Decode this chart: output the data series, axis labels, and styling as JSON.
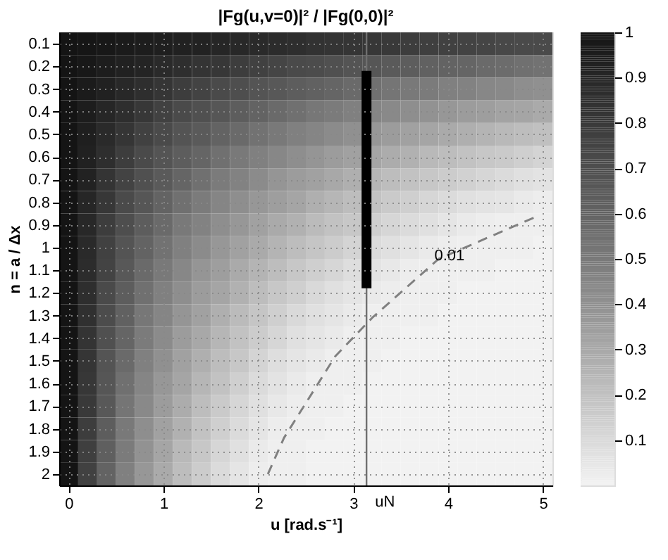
{
  "chart_data": {
    "type": "heatmap",
    "title": "|Fg(u,v=0)|² / |Fg(0,0)|²",
    "xlabel": "u [rad.s⁻¹]",
    "ylabel": "n = a / Δx",
    "x": [
      0,
      0.2,
      0.4,
      0.6,
      0.8,
      1,
      1.2,
      1.4,
      1.6,
      1.8,
      2,
      2.2,
      2.4,
      2.6,
      2.8,
      3,
      3.2,
      3.4,
      3.6,
      3.8,
      4,
      4.2,
      4.4,
      4.6,
      4.8,
      5
    ],
    "y": [
      0.1,
      0.2,
      0.3,
      0.4,
      0.5,
      0.6,
      0.7,
      0.8,
      0.9,
      1,
      1.1,
      1.2,
      1.3,
      1.4,
      1.5,
      1.6,
      1.7,
      1.8,
      1.9,
      2
    ],
    "cells": [
      [
        1,
        0.99,
        0.98,
        0.96,
        0.95,
        0.94,
        0.93,
        0.92,
        0.9,
        0.89,
        0.88,
        0.87,
        0.86,
        0.84,
        0.83,
        0.82,
        0.81,
        0.8,
        0.78,
        0.77,
        0.76,
        0.75,
        0.74,
        0.73,
        0.72,
        0.72
      ],
      [
        1,
        0.98,
        0.95,
        0.93,
        0.91,
        0.88,
        0.86,
        0.83,
        0.81,
        0.78,
        0.76,
        0.74,
        0.72,
        0.71,
        0.69,
        0.67,
        0.66,
        0.64,
        0.63,
        0.61,
        0.6,
        0.59,
        0.57,
        0.56,
        0.54,
        0.53
      ],
      [
        1,
        0.96,
        0.93,
        0.89,
        0.86,
        0.82,
        0.78,
        0.75,
        0.72,
        0.7,
        0.67,
        0.65,
        0.63,
        0.61,
        0.59,
        0.57,
        0.54,
        0.52,
        0.5,
        0.49,
        0.47,
        0.46,
        0.44,
        0.43,
        0.41,
        0.4
      ],
      [
        1,
        0.95,
        0.9,
        0.86,
        0.81,
        0.76,
        0.72,
        0.69,
        0.66,
        0.63,
        0.6,
        0.57,
        0.54,
        0.51,
        0.49,
        0.47,
        0.45,
        0.43,
        0.41,
        0.39,
        0.37,
        0.35,
        0.34,
        0.32,
        0.31,
        0.29
      ],
      [
        1,
        0.94,
        0.88,
        0.82,
        0.76,
        0.72,
        0.67,
        0.64,
        0.6,
        0.57,
        0.53,
        0.5,
        0.47,
        0.45,
        0.42,
        0.4,
        0.37,
        0.35,
        0.33,
        0.31,
        0.29,
        0.27,
        0.25,
        0.23,
        0.21,
        0.2
      ],
      [
        1,
        0.93,
        0.86,
        0.78,
        0.72,
        0.67,
        0.63,
        0.59,
        0.54,
        0.5,
        0.47,
        0.44,
        0.41,
        0.38,
        0.35,
        0.33,
        0.31,
        0.28,
        0.26,
        0.23,
        0.21,
        0.19,
        0.17,
        0.16,
        0.14,
        0.12
      ],
      [
        1,
        0.92,
        0.83,
        0.75,
        0.69,
        0.64,
        0.59,
        0.54,
        0.49,
        0.46,
        0.42,
        0.38,
        0.35,
        0.33,
        0.3,
        0.27,
        0.24,
        0.21,
        0.19,
        0.17,
        0.15,
        0.13,
        0.11,
        0.09,
        0.07,
        0.06
      ],
      [
        1,
        0.9,
        0.81,
        0.72,
        0.66,
        0.6,
        0.54,
        0.49,
        0.45,
        0.41,
        0.37,
        0.34,
        0.31,
        0.27,
        0.24,
        0.21,
        0.19,
        0.16,
        0.14,
        0.11,
        0.09,
        0.07,
        0.06,
        0.05,
        0.03,
        0.02
      ],
      [
        1,
        0.89,
        0.78,
        0.7,
        0.63,
        0.57,
        0.5,
        0.46,
        0.41,
        0.37,
        0.33,
        0.29,
        0.26,
        0.22,
        0.19,
        0.17,
        0.14,
        0.11,
        0.09,
        0.07,
        0.05,
        0.03,
        0.02,
        0.01,
        0.01,
        0.01
      ],
      [
        1,
        0.88,
        0.76,
        0.67,
        0.6,
        0.53,
        0.47,
        0.42,
        0.37,
        0.33,
        0.29,
        0.25,
        0.21,
        0.18,
        0.15,
        0.12,
        0.09,
        0.07,
        0.05,
        0.03,
        0.02,
        0.01,
        0.01,
        0.01,
        0.01,
        0
      ],
      [
        1,
        0.87,
        0.75,
        0.65,
        0.57,
        0.5,
        0.44,
        0.38,
        0.34,
        0.29,
        0.25,
        0.21,
        0.17,
        0.14,
        0.11,
        0.08,
        0.06,
        0.04,
        0.02,
        0.01,
        0.01,
        0.01,
        0.01,
        0,
        0,
        0
      ],
      [
        1,
        0.86,
        0.72,
        0.63,
        0.54,
        0.47,
        0.41,
        0.35,
        0.31,
        0.26,
        0.21,
        0.17,
        0.14,
        0.1,
        0.07,
        0.05,
        0.03,
        0.02,
        0.01,
        0.01,
        0.01,
        0,
        0,
        0,
        0,
        0
      ],
      [
        1,
        0.85,
        0.71,
        0.61,
        0.51,
        0.45,
        0.38,
        0.33,
        0.27,
        0.22,
        0.18,
        0.14,
        0.1,
        0.07,
        0.05,
        0.03,
        0.01,
        0.01,
        0.01,
        0.01,
        0,
        0,
        0,
        0,
        0,
        0
      ],
      [
        1,
        0.83,
        0.69,
        0.59,
        0.49,
        0.42,
        0.35,
        0.3,
        0.24,
        0.19,
        0.15,
        0.11,
        0.07,
        0.05,
        0.03,
        0.01,
        0.01,
        0.01,
        0,
        0,
        0,
        0,
        0,
        0,
        0,
        0
      ],
      [
        1,
        0.82,
        0.67,
        0.57,
        0.47,
        0.4,
        0.33,
        0.27,
        0.21,
        0.17,
        0.12,
        0.08,
        0.05,
        0.03,
        0.01,
        0.01,
        0.01,
        0,
        0,
        0,
        0,
        0,
        0,
        0,
        0,
        0
      ],
      [
        1,
        0.81,
        0.66,
        0.54,
        0.45,
        0.37,
        0.31,
        0.24,
        0.19,
        0.14,
        0.09,
        0.06,
        0.03,
        0.01,
        0.01,
        0.01,
        0,
        0,
        0,
        0,
        0,
        0,
        0,
        0,
        0,
        0
      ],
      [
        1,
        0.8,
        0.65,
        0.52,
        0.43,
        0.35,
        0.28,
        0.21,
        0.16,
        0.11,
        0.07,
        0.04,
        0.02,
        0.01,
        0.01,
        0,
        0,
        0,
        0,
        0,
        0,
        0,
        0,
        0,
        0,
        0
      ],
      [
        1,
        0.78,
        0.63,
        0.5,
        0.41,
        0.33,
        0.26,
        0.19,
        0.14,
        0.09,
        0.05,
        0.02,
        0.01,
        0.01,
        0,
        0,
        0,
        0,
        0,
        0,
        0,
        0,
        0,
        0,
        0,
        0
      ],
      [
        1,
        0.77,
        0.62,
        0.49,
        0.39,
        0.31,
        0.23,
        0.17,
        0.11,
        0.07,
        0.03,
        0.01,
        0.01,
        0,
        0,
        0,
        0,
        0,
        0,
        0,
        0,
        0,
        0,
        0,
        0,
        0
      ],
      [
        1,
        0.76,
        0.6,
        0.47,
        0.37,
        0.29,
        0.21,
        0.15,
        0.09,
        0.05,
        0.02,
        0.01,
        0.01,
        0,
        0,
        0,
        0,
        0,
        0,
        0,
        0,
        0,
        0,
        0,
        0,
        0
      ]
    ],
    "colors": [
      "#f2f2f2",
      "#141414"
    ],
    "clim": [
      0,
      1
    ],
    "cticks": [
      0.1,
      0.2,
      0.3,
      0.4,
      0.5,
      0.6,
      0.7,
      0.8,
      0.9,
      1
    ],
    "xlim": [
      -0.1,
      5.1
    ],
    "xticks": [
      0,
      1,
      2,
      3,
      4,
      5
    ],
    "ylim": [
      2.05,
      0.05
    ],
    "yticks": [
      0.1,
      0.2,
      0.3,
      0.4,
      0.5,
      0.6,
      0.7,
      0.8,
      0.9,
      1,
      1.1,
      1.2,
      1.3,
      1.4,
      1.5,
      1.6,
      1.7,
      1.8,
      1.9,
      2
    ],
    "grid": true,
    "series": [
      {
        "type": "bar",
        "color": "#000000",
        "x": [
          3.14
        ],
        "base": [
          0.22
        ],
        "values": [
          0.96
        ]
      },
      {
        "type": "line",
        "color": "#808080",
        "line_style": "dashed",
        "x": [
          2.1,
          2.27,
          2.81,
          3.2,
          3.9,
          4.95
        ],
        "values": [
          2.0,
          1.84,
          1.48,
          1.31,
          1.05,
          0.86
        ]
      }
    ],
    "ref_lines": [
      {
        "axis": "x",
        "value": 3.14,
        "label": "uN",
        "color": "#707070"
      }
    ],
    "annotations": [
      {
        "text": "0.01",
        "x": 3.9,
        "y": 1.05
      }
    ]
  }
}
